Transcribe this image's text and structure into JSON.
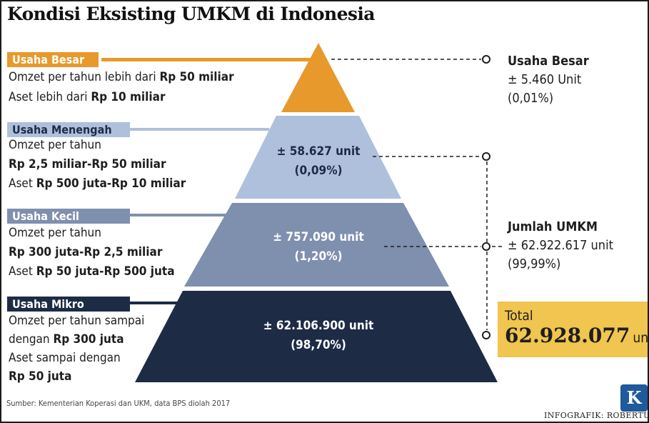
{
  "title": "Kondisi Eksisting UMKM di Indonesia",
  "colors": {
    "besar": "#e7992c",
    "menengah": "#afc0dc",
    "kecil": "#7f8fae",
    "mikro": "#1e2b45",
    "total_box": "#f0c550",
    "logo": "#1e5a9c"
  },
  "tiers": {
    "besar": {
      "label": "Usaha Besar",
      "line1_pre": "Omzet per tahun lebih dari ",
      "line1_bold": "Rp 50 miliar",
      "line2_pre": "Aset lebih dari ",
      "line2_bold": "Rp 10 miliar"
    },
    "menengah": {
      "label": "Usaha Menengah",
      "line1": "Omzet per tahun",
      "line2_bold": "Rp 2,5 miliar-Rp 50 miliar",
      "line3_pre": "Aset ",
      "line3_bold": "Rp 500 juta-Rp 10 miliar",
      "count": "± 58.627 unit",
      "share": "(0,09%)"
    },
    "kecil": {
      "label": "Usaha Kecil",
      "line1": "Omzet per tahun",
      "line2_bold": "Rp 300 juta-Rp 2,5 miliar",
      "line3_pre": "Aset ",
      "line3_bold": "Rp 50 juta-Rp 500 juta",
      "count": "± 757.090 unit",
      "share": "(1,20%)"
    },
    "mikro": {
      "label": "Usaha Mikro",
      "line1": "Omzet per tahun sampai",
      "line2_pre": "dengan ",
      "line2_bold": "Rp 300 juta",
      "line3": "Aset sampai dengan",
      "line4_bold": "Rp 50 juta",
      "count": "± 62.106.900 unit",
      "share": "(98,70%)"
    }
  },
  "right": {
    "besar": {
      "head": "Usaha Besar",
      "count": "± 5.460 Unit",
      "share": "(0,01%)"
    },
    "umkm": {
      "head": "Jumlah UMKM",
      "count": "± 62.922.617 unit",
      "share": "(99,99%)"
    }
  },
  "total": {
    "label": "Total",
    "value": "62.928.077",
    "unit": "unit"
  },
  "source": "Sumber: Kementerian Koperasi dan UKM, data BPS diolah 2017",
  "credit": "INFOGRAFIK: ROBERTUS",
  "logo": "K"
}
